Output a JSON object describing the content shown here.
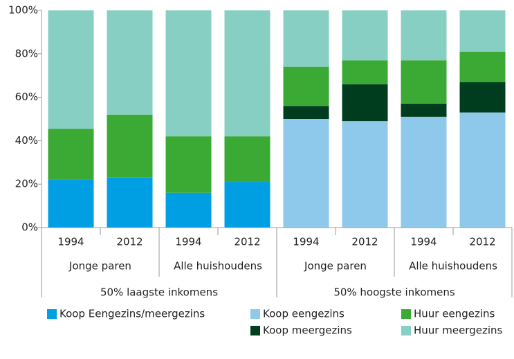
{
  "chart_data": {
    "type": "stacked_bar",
    "categories": [
      "1994",
      "2012",
      "1994",
      "2012",
      "1994",
      "2012",
      "1994",
      "2012"
    ],
    "group_labels": [
      "Jonge paren",
      "Alle huishoudens",
      "Jonge paren",
      "Alle huishoudens"
    ],
    "supergroup_labels": [
      "50% laagste inkomens",
      "50% hoogste inkomens"
    ],
    "series": [
      {
        "name": "Koop Eengezins/meergezins",
        "color": "#009fe3",
        "values": [
          22,
          23,
          16,
          21,
          null,
          null,
          null,
          null
        ]
      },
      {
        "name": "Koop eengezins",
        "color": "#8ec8eb",
        "values": [
          null,
          null,
          null,
          null,
          50,
          49,
          51,
          53
        ]
      },
      {
        "name": "Huur eengezins",
        "color": "#3aaa35",
        "values": [
          23.5,
          29,
          26,
          21,
          18,
          11,
          20,
          14
        ]
      },
      {
        "name": "Koop meergezins",
        "color": "#003d1f",
        "values": [
          null,
          null,
          null,
          null,
          6,
          17,
          6,
          14
        ]
      },
      {
        "name": "Huur meergezins",
        "color": "#86cfc2",
        "values": [
          54.5,
          48,
          58,
          58,
          26,
          23,
          23,
          19
        ]
      }
    ],
    "ylim": [
      0,
      100
    ],
    "yticks": [
      {
        "value": 0,
        "label": "0%"
      },
      {
        "value": 20,
        "label": "20%"
      },
      {
        "value": 40,
        "label": "40%"
      },
      {
        "value": 60,
        "label": "60%"
      },
      {
        "value": 80,
        "label": "80%"
      },
      {
        "value": 100,
        "label": "100%"
      }
    ]
  }
}
